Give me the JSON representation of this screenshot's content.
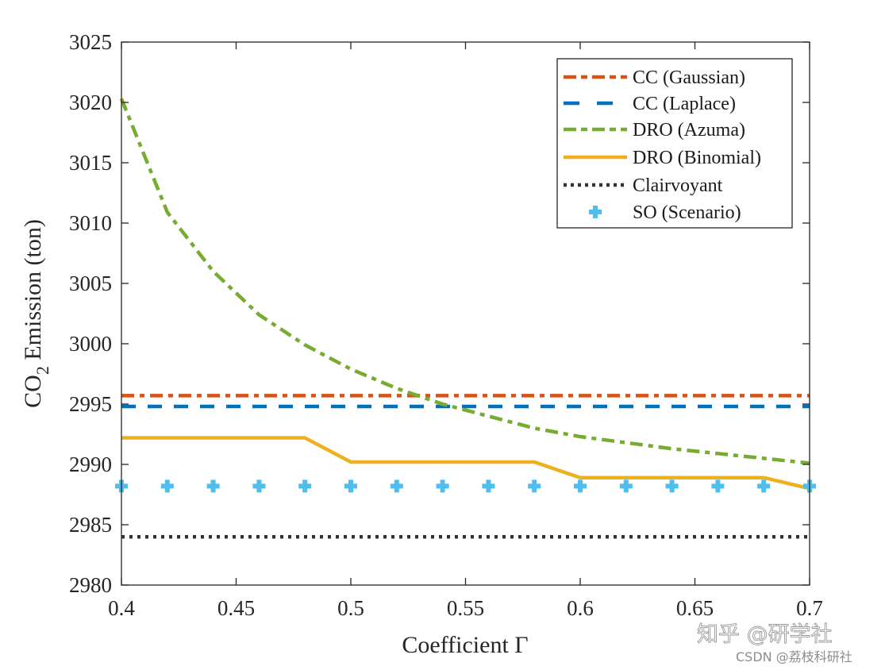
{
  "chart_data": {
    "type": "line",
    "title": "",
    "xlabel": "Coefficient Γ",
    "ylabel_main": "CO",
    "ylabel_sub": "2",
    "ylabel_rest": " Emission (ton)",
    "xlim": [
      0.4,
      0.7
    ],
    "ylim": [
      2980,
      3025
    ],
    "xticks": [
      0.4,
      0.45,
      0.5,
      0.55,
      0.6,
      0.65,
      0.7
    ],
    "xtick_labels": [
      "0.4",
      "0.45",
      "0.5",
      "0.55",
      "0.6",
      "0.65",
      "0.7"
    ],
    "yticks": [
      2980,
      2985,
      2990,
      2995,
      3000,
      3005,
      3010,
      3015,
      3020,
      3025
    ],
    "ytick_labels": [
      "2980",
      "2985",
      "2990",
      "2995",
      "3000",
      "3005",
      "3010",
      "3015",
      "3020",
      "3025"
    ],
    "grid": false,
    "legend_position": "top-right",
    "x": [
      0.4,
      0.42,
      0.44,
      0.46,
      0.48,
      0.5,
      0.52,
      0.54,
      0.56,
      0.58,
      0.6,
      0.62,
      0.64,
      0.66,
      0.68,
      0.7
    ],
    "series": [
      {
        "name": "CC (Gaussian)",
        "color": "#D95319",
        "style": "dash-dot",
        "marker": "none",
        "values": [
          2995.7,
          2995.7,
          2995.7,
          2995.7,
          2995.7,
          2995.7,
          2995.7,
          2995.7,
          2995.7,
          2995.7,
          2995.7,
          2995.7,
          2995.7,
          2995.7,
          2995.7,
          2995.7
        ]
      },
      {
        "name": "CC (Laplace)",
        "color": "#0072BD",
        "style": "dashed",
        "marker": "none",
        "values": [
          2994.8,
          2994.8,
          2994.8,
          2994.8,
          2994.8,
          2994.8,
          2994.8,
          2994.8,
          2994.8,
          2994.8,
          2994.8,
          2994.8,
          2994.8,
          2994.8,
          2994.8,
          2994.8
        ]
      },
      {
        "name": "DRO (Azuma)",
        "color": "#77AC30",
        "style": "dash-dot",
        "marker": "none",
        "values": [
          3020.3,
          3010.9,
          3006.0,
          3002.4,
          2999.9,
          2997.9,
          2996.3,
          2995.0,
          2994.0,
          2993.0,
          2992.3,
          2991.8,
          2991.3,
          2990.9,
          2990.5,
          2990.1
        ]
      },
      {
        "name": "DRO (Binomial)",
        "color": "#EDB120",
        "style": "solid",
        "marker": "none",
        "values": [
          2992.2,
          2992.2,
          2992.2,
          2992.2,
          2992.2,
          2990.2,
          2990.2,
          2990.2,
          2990.2,
          2990.2,
          2988.9,
          2988.9,
          2988.9,
          2988.9,
          2988.9,
          2988.0
        ]
      },
      {
        "name": "Clairvoyant",
        "color": "#333333",
        "style": "dotted",
        "marker": "none",
        "values": [
          2984.0,
          2984.0,
          2984.0,
          2984.0,
          2984.0,
          2984.0,
          2984.0,
          2984.0,
          2984.0,
          2984.0,
          2984.0,
          2984.0,
          2984.0,
          2984.0,
          2984.0,
          2984.0
        ]
      },
      {
        "name": "SO (Scenario)",
        "color": "#4DBEEE",
        "style": "none",
        "marker": "plus",
        "values": [
          2988.2,
          2988.2,
          2988.2,
          2988.2,
          2988.2,
          2988.2,
          2988.2,
          2988.2,
          2988.2,
          2988.2,
          2988.2,
          2988.2,
          2988.2,
          2988.2,
          2988.2,
          2988.2
        ]
      }
    ]
  },
  "watermark": {
    "line1": "知乎 @研学社",
    "line2": "CSDN @荔枝科研社"
  }
}
